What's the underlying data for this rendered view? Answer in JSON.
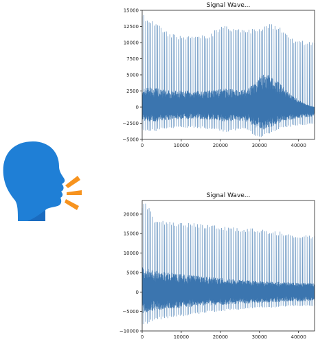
{
  "icon": {
    "name": "speaking-head-icon",
    "head_color": "#1f7fd6",
    "head_shadow": "#1a6bbf",
    "sound_color": "#f7931e"
  },
  "chart_data": [
    {
      "type": "line",
      "title": "Signal Wave...",
      "xlabel": "",
      "ylabel": "",
      "xlim": [
        0,
        44100
      ],
      "ylim": [
        -5000,
        15000
      ],
      "xticks": [
        0,
        10000,
        20000,
        30000,
        40000
      ],
      "yticks": [
        -5000,
        -2500,
        0,
        2500,
        5000,
        7500,
        10000,
        12500,
        15000
      ],
      "grid": false,
      "line_color": "#3b75af",
      "series": [
        {
          "x": [
            0,
            1000,
            2000,
            3000,
            5000,
            7000,
            9000,
            11000,
            13000,
            15000,
            17000,
            19000,
            21000,
            23000,
            25000,
            27000,
            29000,
            31000,
            33000,
            35000,
            37000,
            39000,
            41000,
            43000,
            44100
          ],
          "upper": [
            14600,
            14000,
            13800,
            13600,
            12300,
            11600,
            11300,
            11200,
            11000,
            11100,
            11300,
            12100,
            12800,
            12600,
            12300,
            12300,
            12200,
            12700,
            13100,
            12800,
            11300,
            10500,
            10300,
            10100,
            10000
          ],
          "lower": [
            -3500,
            -3700,
            -3700,
            -3800,
            -3500,
            -3400,
            -3300,
            -3300,
            -3200,
            -3300,
            -3400,
            -3600,
            -3900,
            -3700,
            -3500,
            -3600,
            -4900,
            -4600,
            -4100,
            -3500,
            -3200,
            -2900,
            -2800,
            -2700,
            -2600
          ],
          "band_upper": [
            2800,
            3000,
            3200,
            3100,
            2800,
            2700,
            2600,
            2600,
            2500,
            2500,
            2600,
            2700,
            2900,
            2800,
            2600,
            2800,
            4000,
            5200,
            5000,
            3800,
            2500,
            1500,
            800,
            200,
            0
          ],
          "band_lower": [
            -2000,
            -2200,
            -2200,
            -2300,
            -2100,
            -2000,
            -1900,
            -1900,
            -1800,
            -1900,
            -2000,
            -2100,
            -2300,
            -2200,
            -2100,
            -2300,
            -3200,
            -3500,
            -3100,
            -2600,
            -2100,
            -1800,
            -1600,
            -1500,
            -1400
          ]
        }
      ]
    },
    {
      "type": "line",
      "title": "Signal Wave...",
      "xlabel": "",
      "ylabel": "",
      "xlim": [
        0,
        44100
      ],
      "ylim": [
        -10000,
        23500
      ],
      "xticks": [
        0,
        10000,
        20000,
        30000,
        40000
      ],
      "yticks": [
        -10000,
        -5000,
        0,
        5000,
        10000,
        15000,
        20000
      ],
      "grid": false,
      "line_color": "#3b75af",
      "series": [
        {
          "x": [
            0,
            1000,
            2000,
            3000,
            5000,
            7000,
            9000,
            11000,
            13000,
            15000,
            17000,
            19000,
            21000,
            23000,
            25000,
            27000,
            29000,
            31000,
            33000,
            35000,
            37000,
            39000,
            41000,
            43000,
            44100
          ],
          "upper": [
            23200,
            22700,
            22300,
            19000,
            18500,
            18300,
            18100,
            17900,
            17700,
            17600,
            17400,
            17200,
            17000,
            16800,
            16600,
            16400,
            16300,
            16000,
            15800,
            15600,
            15300,
            15000,
            14800,
            14500,
            14400
          ],
          "lower": [
            -8800,
            -8300,
            -7900,
            -7400,
            -7000,
            -6700,
            -6400,
            -6100,
            -5800,
            -5600,
            -5300,
            -5100,
            -4900,
            -4700,
            -4500,
            -4400,
            -4200,
            -4100,
            -4000,
            -3900,
            -3800,
            -3700,
            -3600,
            -3600,
            -3600
          ],
          "band_upper": [
            6500,
            6200,
            5800,
            5500,
            5200,
            5000,
            4700,
            4500,
            4300,
            4100,
            3900,
            3700,
            3500,
            3300,
            3200,
            3000,
            2900,
            2800,
            2700,
            2600,
            2500,
            2400,
            2300,
            2300,
            2300
          ],
          "band_lower": [
            -5500,
            -5300,
            -5000,
            -4800,
            -4600,
            -4400,
            -4200,
            -4000,
            -3800,
            -3600,
            -3500,
            -3400,
            -3300,
            -3200,
            -3100,
            -3000,
            -2900,
            -2800,
            -2700,
            -2600,
            -2500,
            -2500,
            -2400,
            -2400,
            -2400
          ]
        }
      ]
    }
  ]
}
